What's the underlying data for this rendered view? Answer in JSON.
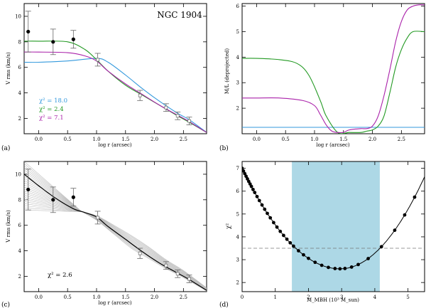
{
  "chart_data": [
    {
      "id": "a",
      "type": "line",
      "panel_label": "(a)",
      "title": "NGC 1904",
      "xlabel": "log r (arcsec)",
      "ylabel": "V rms (km/s)",
      "xlim": [
        -0.25,
        2.9
      ],
      "ylim": [
        0.8,
        11
      ],
      "xticks": [
        0.0,
        0.5,
        1.0,
        1.5,
        2.0,
        2.5
      ],
      "xtick_labels": [
        "0.0",
        "0.5",
        "1.0",
        "1.5",
        "2.0",
        "2.5"
      ],
      "yticks": [
        2,
        4,
        6,
        8,
        10
      ],
      "ytick_labels": [
        "2",
        "4",
        "6",
        "8",
        "10"
      ],
      "annotations": [
        {
          "text": "χ² = 18.0",
          "color": "#3399dd"
        },
        {
          "text": "χ² = 2.4",
          "color": "#229922"
        },
        {
          "text": "χ² = 7.1",
          "color": "#aa22aa"
        }
      ],
      "filled_points": [
        {
          "x": -0.18,
          "y": 8.8,
          "err": 1.6
        },
        {
          "x": 0.25,
          "y": 8.0,
          "err": 1.0
        },
        {
          "x": 0.6,
          "y": 8.2,
          "err": 0.7
        }
      ],
      "open_points": [
        {
          "x": 1.02,
          "y": 6.6,
          "err": 0.5
        },
        {
          "x": 1.75,
          "y": 3.8,
          "err": 0.4
        },
        {
          "x": 2.2,
          "y": 2.85,
          "err": 0.3
        },
        {
          "x": 2.4,
          "y": 2.2,
          "err": 0.3
        },
        {
          "x": 2.6,
          "y": 1.8,
          "err": 0.3
        }
      ],
      "series": [
        {
          "name": "blue",
          "color": "#3399dd",
          "x": [
            -0.25,
            0.0,
            0.5,
            1.0,
            1.2,
            1.5,
            1.8,
            2.1,
            2.4,
            2.6,
            2.9
          ],
          "y": [
            6.4,
            6.4,
            6.5,
            6.7,
            6.4,
            5.4,
            4.3,
            3.3,
            2.4,
            1.9,
            0.9
          ]
        },
        {
          "name": "green",
          "color": "#229922",
          "x": [
            -0.25,
            0.0,
            0.5,
            0.8,
            1.0,
            1.2,
            1.5,
            1.8,
            2.1,
            2.4,
            2.6,
            2.9
          ],
          "y": [
            8.05,
            8.05,
            8.0,
            7.4,
            6.6,
            5.7,
            4.6,
            3.8,
            3.0,
            2.2,
            1.7,
            0.9
          ]
        },
        {
          "name": "magenta",
          "color": "#aa22aa",
          "x": [
            -0.25,
            0.0,
            0.5,
            0.8,
            1.0,
            1.2,
            1.5,
            1.8,
            2.1,
            2.4,
            2.6,
            2.9
          ],
          "y": [
            7.2,
            7.2,
            7.15,
            6.9,
            6.5,
            5.7,
            4.7,
            3.85,
            3.0,
            2.25,
            1.75,
            0.9
          ]
        }
      ]
    },
    {
      "id": "b",
      "type": "line",
      "panel_label": "(b)",
      "title": "",
      "xlabel": "log r (arcsec)",
      "ylabel": "M/L (deprojected)",
      "xlim": [
        -0.25,
        2.9
      ],
      "ylim": [
        1.0,
        6.1
      ],
      "xticks": [
        0.0,
        0.5,
        1.0,
        1.5,
        2.0,
        2.5
      ],
      "xtick_labels": [
        "0.0",
        "0.5",
        "1.0",
        "1.5",
        "2.0",
        "2.5"
      ],
      "yticks": [
        2,
        3,
        4,
        5,
        6
      ],
      "ytick_labels": [
        "2",
        "3",
        "4",
        "5",
        "6"
      ],
      "series": [
        {
          "name": "blue",
          "color": "#3399dd",
          "x": [
            -0.25,
            2.9
          ],
          "y": [
            1.25,
            1.25
          ]
        },
        {
          "name": "green",
          "color": "#229922",
          "x": [
            -0.25,
            0.0,
            0.4,
            0.7,
            0.9,
            1.1,
            1.2,
            1.4,
            1.6,
            1.8,
            1.9,
            2.0,
            2.1,
            2.2,
            2.3,
            2.4,
            2.5,
            2.6,
            2.7,
            2.9
          ],
          "y": [
            3.95,
            3.95,
            3.9,
            3.75,
            3.3,
            2.3,
            1.7,
            1.05,
            1.05,
            1.05,
            1.1,
            1.15,
            1.3,
            1.7,
            2.6,
            3.6,
            4.3,
            4.75,
            5.0,
            5.0
          ]
        },
        {
          "name": "magenta",
          "color": "#aa22aa",
          "x": [
            -0.25,
            0.0,
            0.4,
            0.8,
            1.0,
            1.1,
            1.2,
            1.3,
            1.4,
            1.5,
            1.6,
            1.8,
            1.9,
            2.0,
            2.1,
            2.2,
            2.3,
            2.4,
            2.5,
            2.6,
            2.7,
            2.8,
            2.9
          ],
          "y": [
            2.4,
            2.4,
            2.4,
            2.3,
            2.1,
            1.75,
            1.35,
            1.1,
            1.05,
            1.05,
            1.15,
            1.2,
            1.2,
            1.3,
            1.7,
            2.5,
            3.5,
            4.6,
            5.4,
            5.85,
            6.0,
            6.05,
            6.05
          ]
        }
      ]
    },
    {
      "id": "c",
      "type": "line",
      "panel_label": "(c)",
      "title": "",
      "xlabel": "log r (arcsec)",
      "ylabel": "V rms (km/s)",
      "xlim": [
        -0.25,
        2.9
      ],
      "ylim": [
        0.8,
        11
      ],
      "xticks": [
        0.0,
        0.5,
        1.0,
        1.5,
        2.0,
        2.5
      ],
      "xtick_labels": [
        "0.0",
        "0.5",
        "1.0",
        "1.5",
        "2.0",
        "2.5"
      ],
      "yticks": [
        2,
        4,
        6,
        8,
        10
      ],
      "ytick_labels": [
        "2",
        "4",
        "6",
        "8",
        "10"
      ],
      "annotations": [
        {
          "text": "χ² = 2.6",
          "color": "#000000"
        }
      ],
      "filled_points": [
        {
          "x": -0.18,
          "y": 8.8,
          "err": 1.6
        },
        {
          "x": 0.25,
          "y": 8.0,
          "err": 1.0
        },
        {
          "x": 0.6,
          "y": 8.2,
          "err": 0.7
        }
      ],
      "open_points": [
        {
          "x": 1.02,
          "y": 6.6,
          "err": 0.5
        },
        {
          "x": 1.75,
          "y": 3.8,
          "err": 0.4
        },
        {
          "x": 2.2,
          "y": 2.85,
          "err": 0.3
        },
        {
          "x": 2.4,
          "y": 2.2,
          "err": 0.3
        },
        {
          "x": 2.6,
          "y": 1.8,
          "err": 0.3
        }
      ],
      "best_fit": {
        "x": [
          -0.25,
          0.0,
          0.3,
          0.6,
          0.8,
          1.0,
          1.2,
          1.5,
          1.8,
          2.1,
          2.4,
          2.6,
          2.9
        ],
        "y": [
          10.0,
          9.1,
          8.1,
          7.3,
          7.0,
          6.65,
          5.9,
          4.9,
          3.9,
          3.0,
          2.25,
          1.75,
          0.9
        ]
      },
      "envelope_fan": {
        "pivot_x": 0.75,
        "pivot_y": 7.05,
        "left_x": -0.25,
        "left_y_min": 7.2,
        "left_y_max": 11.0,
        "n_lines": 24
      },
      "envelope_band": {
        "x": [
          0.75,
          1.0,
          1.3,
          1.6,
          1.9,
          2.2,
          2.5,
          2.9
        ],
        "upper": [
          7.05,
          6.75,
          6.0,
          5.2,
          4.3,
          3.3,
          2.45,
          1.1
        ],
        "lower": [
          7.05,
          6.4,
          5.3,
          4.2,
          3.4,
          2.6,
          1.9,
          0.85
        ]
      }
    },
    {
      "id": "d",
      "type": "scatter",
      "panel_label": "(d)",
      "title": "",
      "xlabel": "M_MBH (10³ M_sun)",
      "ylabel": "χ²",
      "xlim": [
        0,
        5.5
      ],
      "ylim": [
        1.6,
        7.3
      ],
      "xticks": [
        0,
        1,
        2,
        3,
        4,
        5
      ],
      "xtick_labels": [
        "0",
        "1",
        "2",
        "3",
        "4",
        "5"
      ],
      "yticks": [
        2,
        3,
        4,
        5,
        6,
        7
      ],
      "ytick_labels": [
        "2",
        "3",
        "4",
        "5",
        "6",
        "7"
      ],
      "shaded_region": {
        "x": [
          1.5,
          4.15
        ],
        "color": "#add8e6"
      },
      "threshold_line": {
        "y": 3.5,
        "style": "dashed"
      },
      "curve": {
        "min_x": 2.95,
        "min_y": 2.6,
        "left_coef": 0.506,
        "right_coef": 0.62
      },
      "points_x": [
        0.0,
        0.04,
        0.08,
        0.12,
        0.16,
        0.2,
        0.24,
        0.28,
        0.33,
        0.38,
        0.45,
        0.52,
        0.6,
        0.68,
        0.76,
        0.85,
        0.95,
        1.05,
        1.15,
        1.25,
        1.35,
        1.45,
        1.55,
        1.7,
        1.85,
        2.0,
        2.2,
        2.4,
        2.6,
        2.8,
        2.95,
        3.1,
        3.3,
        3.5,
        3.8,
        4.2,
        4.6,
        4.9,
        5.2
      ]
    }
  ]
}
